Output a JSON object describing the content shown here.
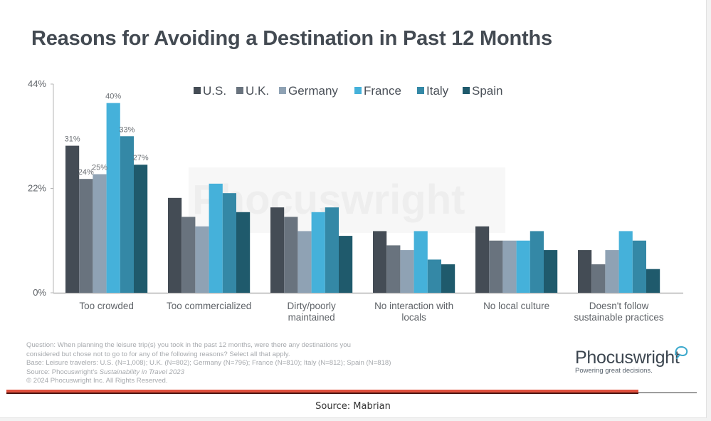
{
  "title": "Reasons for Avoiding a Destination in Past 12 Months",
  "chart_data": {
    "type": "bar",
    "title": "Reasons for Avoiding a Destination in Past 12 Months",
    "xlabel": "",
    "ylabel": "",
    "ylim": [
      0,
      44
    ],
    "yticks": [
      0,
      22,
      44
    ],
    "ytick_labels": [
      "0%",
      "22%",
      "44%"
    ],
    "grid": false,
    "legend_position": "top-center",
    "categories": [
      "Too crowded",
      "Too commercialized",
      "Dirty/poorly maintained",
      "No interaction with locals",
      "No local culture",
      "Doesn't follow sustainable practices"
    ],
    "category_label_lines": [
      [
        "Too crowded"
      ],
      [
        "Too commercialized"
      ],
      [
        "Dirty/poorly",
        "maintained"
      ],
      [
        "No interaction with",
        "locals"
      ],
      [
        "No local culture"
      ],
      [
        "Doesn't follow",
        "sustainable practices"
      ]
    ],
    "series": [
      {
        "name": "U.S.",
        "color": "#444c55",
        "values": [
          31,
          20,
          18,
          13,
          14,
          9
        ]
      },
      {
        "name": "U.K.",
        "color": "#69737e",
        "values": [
          24,
          16,
          16,
          10,
          11,
          6
        ]
      },
      {
        "name": "Germany",
        "color": "#8fa2b4",
        "values": [
          25,
          14,
          13,
          9,
          11,
          9
        ]
      },
      {
        "name": "France",
        "color": "#45b1da",
        "values": [
          40,
          23,
          17,
          13,
          11,
          13
        ]
      },
      {
        "name": "Italy",
        "color": "#3488a6",
        "values": [
          33,
          21,
          18,
          7,
          13,
          11
        ]
      },
      {
        "name": "Spain",
        "color": "#1f5a6c",
        "values": [
          27,
          17,
          12,
          6,
          9,
          5
        ]
      }
    ],
    "data_labels": {
      "category": "Too crowded",
      "labels": [
        "31%",
        "24%",
        "25%",
        "40%",
        "33%",
        "27%"
      ]
    },
    "watermark": "Phocuswright"
  },
  "notes": {
    "question_line1": "Question: When planning the leisure trip(s) you took in the past 12 months, were there any destinations you",
    "question_line2": "considered but chose not to go to for any of the following reasons? Select all that apply.",
    "base": "Base: Leisure travelers: U.S. (N=1,008); U.K. (N=802); Germany (N=796); France (N=810); Italy (N=812); Spain (N=818)",
    "source_prefix": "Source: Phocuswright's ",
    "source_title": "Sustainability in Travel 2023",
    "copyright": "© 2024 Phocuswright Inc. All Rights Reserved."
  },
  "logo": {
    "name": "Phocuswright",
    "tagline": "Powering great decisions."
  },
  "caption": "Source: Mabrian"
}
